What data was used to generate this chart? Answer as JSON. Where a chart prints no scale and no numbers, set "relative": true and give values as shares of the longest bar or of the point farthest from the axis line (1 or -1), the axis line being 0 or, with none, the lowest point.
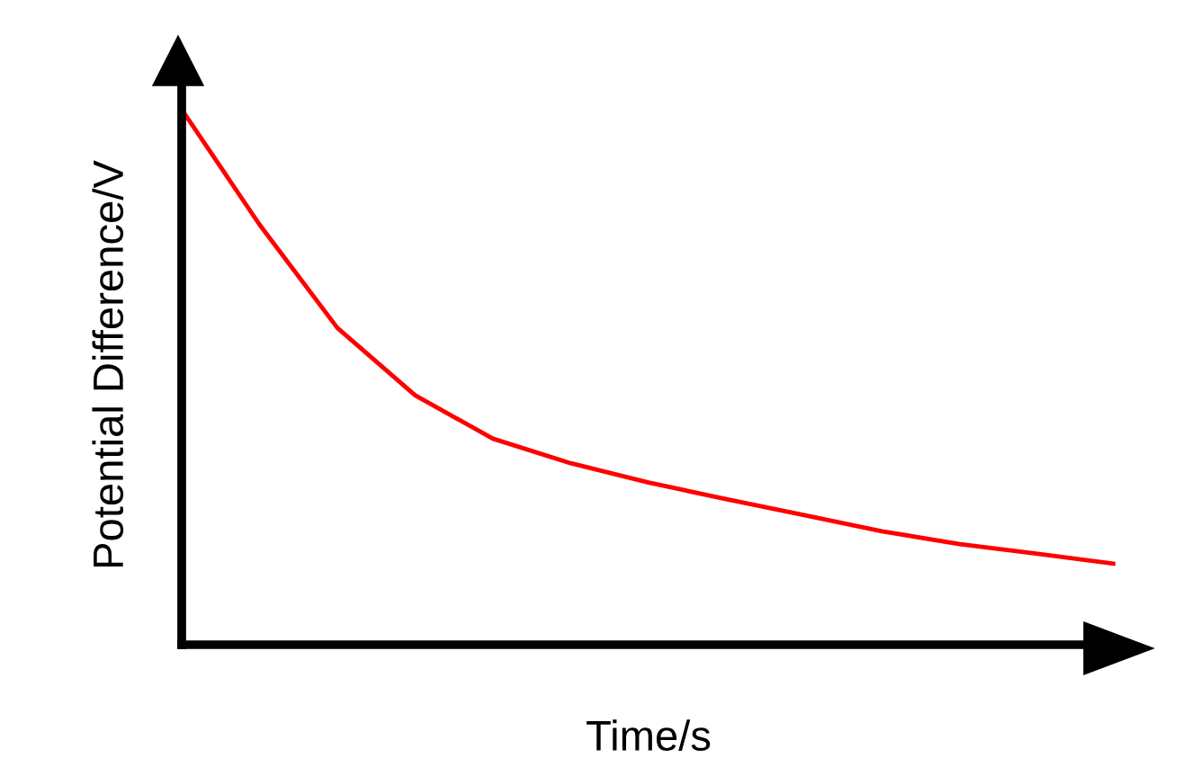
{
  "chart_data": {
    "type": "line",
    "relative": true,
    "xlabel": "Time/s",
    "ylabel": "Potential Difference/V",
    "categories": [
      null,
      null,
      null,
      null,
      null,
      null,
      null,
      null,
      null,
      null,
      null,
      null,
      null
    ],
    "series": [
      {
        "color": "#ff0000",
        "values": [
          1.0,
          0.785,
          0.592,
          0.466,
          0.385,
          0.339,
          0.303,
          0.272,
          0.242,
          0.212,
          0.188,
          0.17,
          0.151
        ]
      }
    ],
    "grid": false,
    "tick_labels": false,
    "marker": "none",
    "line_style": "solid"
  }
}
